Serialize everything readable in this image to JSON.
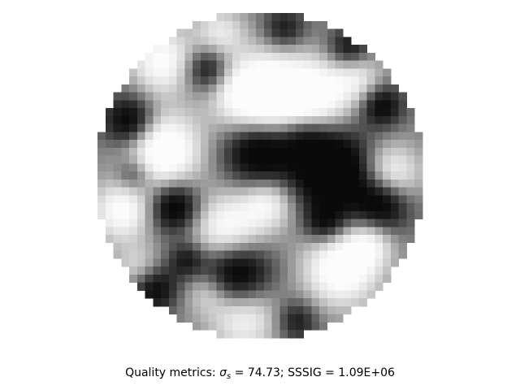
{
  "figure": {
    "image_kind": "grayscale circular speckle image",
    "colormap": "gray",
    "grid_cells_per_side": 41
  },
  "caption": {
    "prefix": "Quality metrics: ",
    "sigma_symbol": "σ",
    "sigma_subscript": "s",
    "sigma_value": " = 74.73; ",
    "sssig_text": "SSSIG = 1.09E+06"
  }
}
